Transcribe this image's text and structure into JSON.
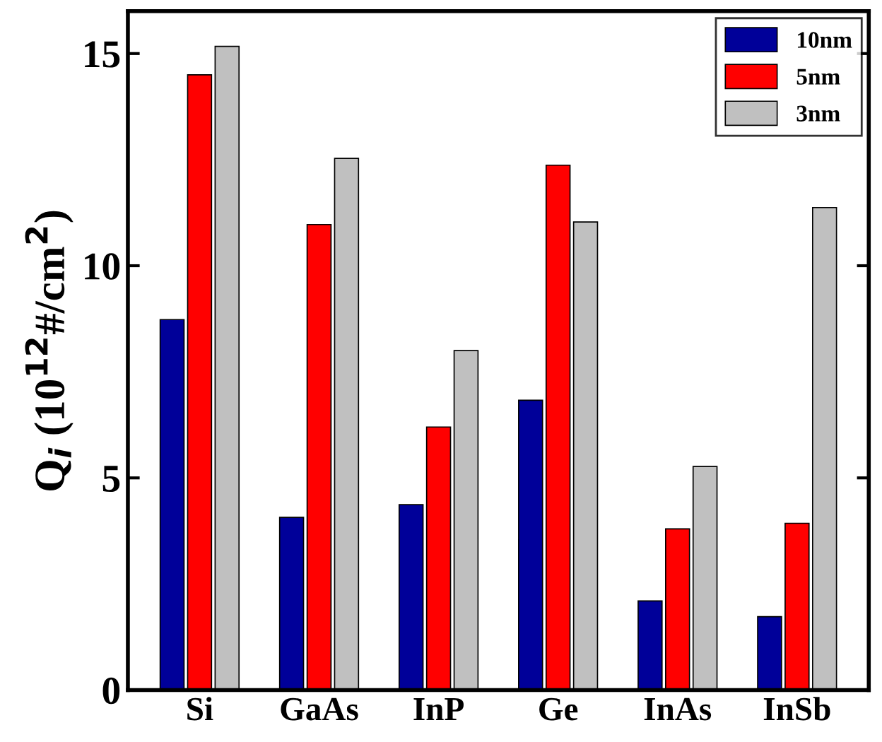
{
  "chart_data": {
    "type": "bar",
    "ylabel": "Q$_{i}$ (10$^{12}$#/cm$^{2}$)",
    "categories": [
      "Si",
      "GaAs",
      "InP",
      "Ge",
      "InAs",
      "InSb"
    ],
    "series": [
      {
        "name": "10nm",
        "color": "#000099",
        "values": [
          8.73,
          4.07,
          4.37,
          6.83,
          2.1,
          1.73
        ]
      },
      {
        "name": "5nm",
        "color": "#ff0000",
        "values": [
          14.5,
          10.97,
          6.2,
          12.37,
          3.8,
          3.93
        ]
      },
      {
        "name": "3nm",
        "color": "#c0c0c0",
        "values": [
          15.17,
          12.53,
          8.0,
          11.03,
          5.27,
          11.37
        ]
      }
    ],
    "ylim": [
      0,
      16
    ],
    "yticks": [
      0,
      5,
      10,
      15
    ],
    "grid": false,
    "legend": "top right"
  }
}
